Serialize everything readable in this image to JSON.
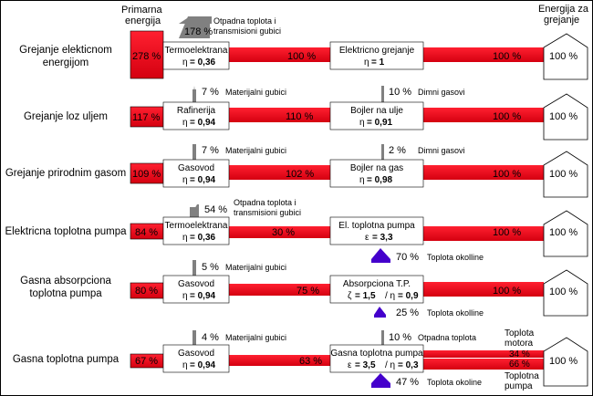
{
  "header": {
    "primary_line1": "Primarna",
    "primary_line2": "energija",
    "heating_line1": "Energija za",
    "heating_line2": "grejanje"
  },
  "rows": [
    {
      "label": [
        "Grejanje elekticnom",
        "energijom"
      ],
      "primary_pct": "278 %",
      "box1": {
        "name": "Termoelektrana",
        "eta_sym": "η",
        "eta_val": "= 0,36"
      },
      "mid_pct": "100 %",
      "loss1": {
        "pct": "178 %",
        "text": [
          "Otpadna toplota i",
          "transmisioni gubici"
        ]
      },
      "box2": {
        "name": "Elektricno grejanje",
        "eta_sym": "η",
        "eta_val": "= 1"
      },
      "out_pct": "100 %",
      "house_pct": "100 %"
    },
    {
      "label": [
        "Grejanje loz uljem"
      ],
      "primary_pct": "117 %",
      "box1": {
        "name": "Rafinerija",
        "eta_sym": "η",
        "eta_val": "= 0,94"
      },
      "mid_pct": "110 %",
      "loss1": {
        "pct": "7 %",
        "text": [
          "Materijalni gubici"
        ]
      },
      "loss2": {
        "pct": "10 %",
        "text": [
          "Dimni gasovi"
        ]
      },
      "box2": {
        "name": "Bojler na ulje",
        "eta_sym": "η",
        "eta_val": "= 0,91"
      },
      "out_pct": "100 %",
      "house_pct": "100 %"
    },
    {
      "label": [
        "Grejanje prirodnim gasom"
      ],
      "primary_pct": "109 %",
      "box1": {
        "name": "Gasovod",
        "eta_sym": "η",
        "eta_val": "= 0,94"
      },
      "mid_pct": "102 %",
      "loss1": {
        "pct": "7 %",
        "text": [
          "Materijalni gubici"
        ]
      },
      "loss2": {
        "pct": "2 %",
        "text": [
          "Dimni gasovi"
        ]
      },
      "box2": {
        "name": "Bojler na gas",
        "eta_sym": "η",
        "eta_val": "= 0,98"
      },
      "out_pct": "100 %",
      "house_pct": "100 %"
    },
    {
      "label": [
        "Elektricna toplotna pumpa"
      ],
      "primary_pct": "84 %",
      "box1": {
        "name": "Termoelektrana",
        "eta_sym": "η",
        "eta_val": "= 0,36"
      },
      "mid_pct": "30 %",
      "loss1": {
        "pct": "54 %",
        "text": [
          "Otpadna toplota i",
          "transmisioni gubici"
        ]
      },
      "box2": {
        "name": "El. toplotna pumpa",
        "eta_sym": "ε",
        "eta_val": "= 3,3"
      },
      "gain": {
        "pct": "70 %",
        "text": "Toplota okolline"
      },
      "out_pct": "100 %",
      "house_pct": "100 %"
    },
    {
      "label": [
        "Gasna absorpciona",
        "toplotna pumpa"
      ],
      "primary_pct": "80 %",
      "box1": {
        "name": "Gasovod",
        "eta_sym": "η",
        "eta_val": "= 0,94"
      },
      "mid_pct": "75 %",
      "loss1": {
        "pct": "5 %",
        "text": [
          "Materijalni gubici"
        ]
      },
      "box2": {
        "name": "Absorpciona T.P.",
        "eta_sym": "ζ",
        "eta_val": "= 1,5",
        "eta2_sym": "/ η",
        "eta2_val": "= 0,9"
      },
      "gain": {
        "pct": "25 %",
        "text": "Toplota okolline"
      },
      "out_pct": "100 %",
      "house_pct": "100 %"
    },
    {
      "label": [
        "Gasna toplotna pumpa"
      ],
      "primary_pct": "67 %",
      "box1": {
        "name": "Gasovod",
        "eta_sym": "η",
        "eta_val": "= 0,94"
      },
      "mid_pct": "63 %",
      "loss1": {
        "pct": "4 %",
        "text": [
          "Materijalni gubici"
        ]
      },
      "loss2": {
        "pct": "10 %",
        "text": [
          "Otpadna toplota"
        ]
      },
      "box2": {
        "name": "Gasna toplotna pumpa",
        "eta_sym": "ε",
        "eta_val": "= 3,5",
        "eta2_sym": "/ η",
        "eta2_val": "= 0,3"
      },
      "gain": {
        "pct": "47 %",
        "text": "Toplota okoline"
      },
      "split": {
        "a_pct": "34 %",
        "b_pct": "66 %",
        "a_label": [
          "Toplota",
          "motora"
        ],
        "b_label": [
          "Toplotna",
          "pumpa"
        ]
      },
      "house_pct": "100 %"
    }
  ],
  "colors": {
    "flow": "#ff1020",
    "flow_dark": "#e00010",
    "loss_arrow": "#808080",
    "gain_arrow": "#4400cc"
  }
}
